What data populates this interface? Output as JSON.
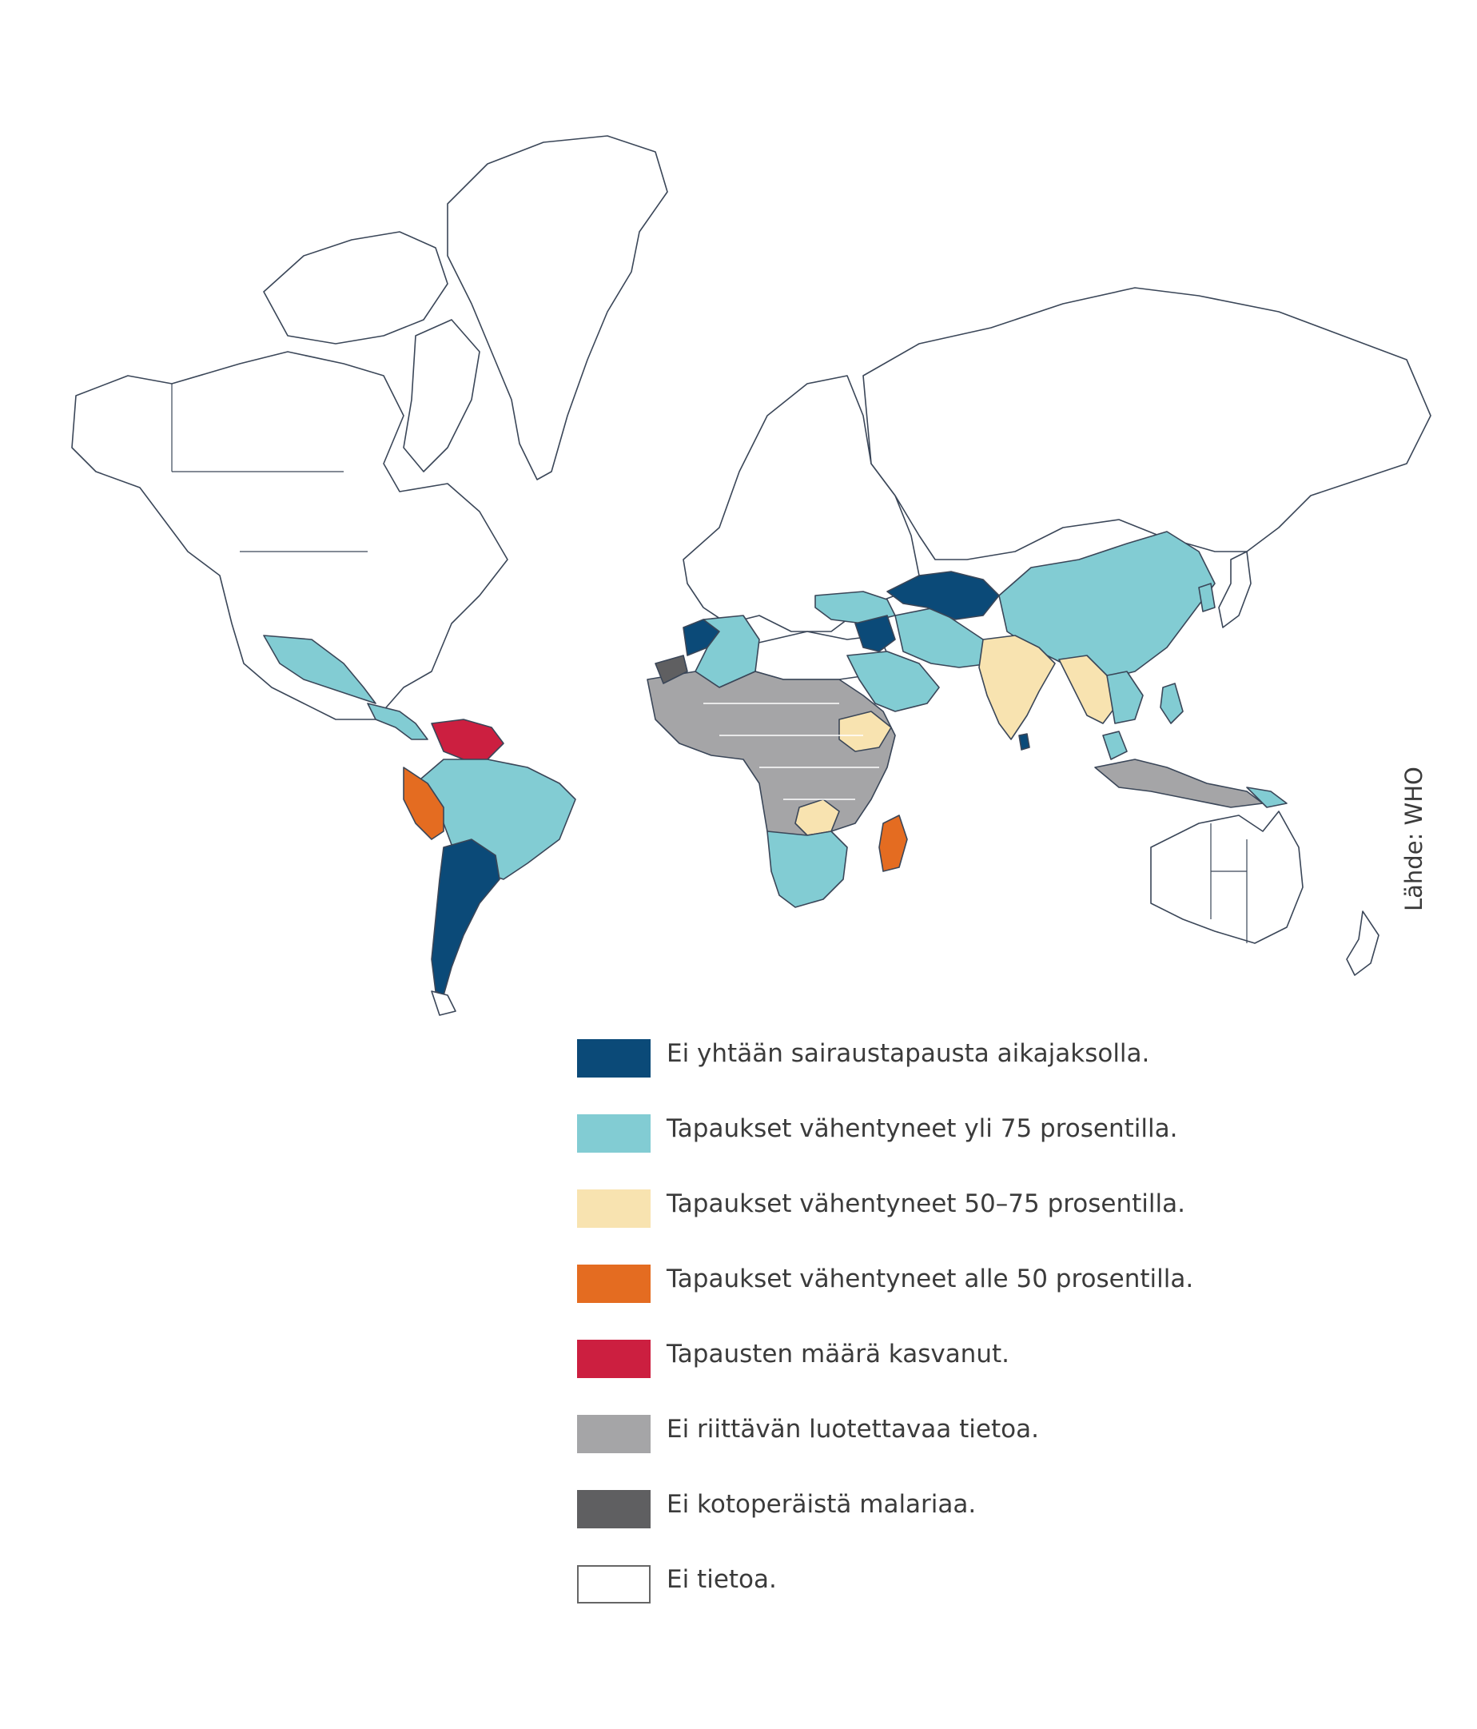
{
  "source": "Lähde: WHO",
  "legend": [
    {
      "label": "Ei yhtään sairaustapausta aikajaksolla.",
      "color": "#0b4a78",
      "border": "#0b4a78"
    },
    {
      "label": "Tapaukset vähentyneet yli 75 prosentilla.",
      "color": "#82ccd3",
      "border": "#82ccd3"
    },
    {
      "label": "Tapaukset vähentyneet 50–75 prosentilla.",
      "color": "#f8e3b0",
      "border": "#f8e3b0"
    },
    {
      "label": "Tapaukset vähentyneet alle 50 prosentilla.",
      "color": "#e46c21",
      "border": "#e46c21"
    },
    {
      "label": "Tapausten määrä kasvanut.",
      "color": "#cc1f40",
      "border": "#cc1f40"
    },
    {
      "label": "Ei riittävän luotettavaa tietoa.",
      "color": "#a5a5a7",
      "border": "#a5a5a7"
    },
    {
      "label": "Ei kotoperäistä malariaa.",
      "color": "#5f5f61",
      "border": "#5f5f61"
    },
    {
      "label": "Ei tietoa.",
      "color": "#ffffff",
      "border": "#666666"
    }
  ]
}
